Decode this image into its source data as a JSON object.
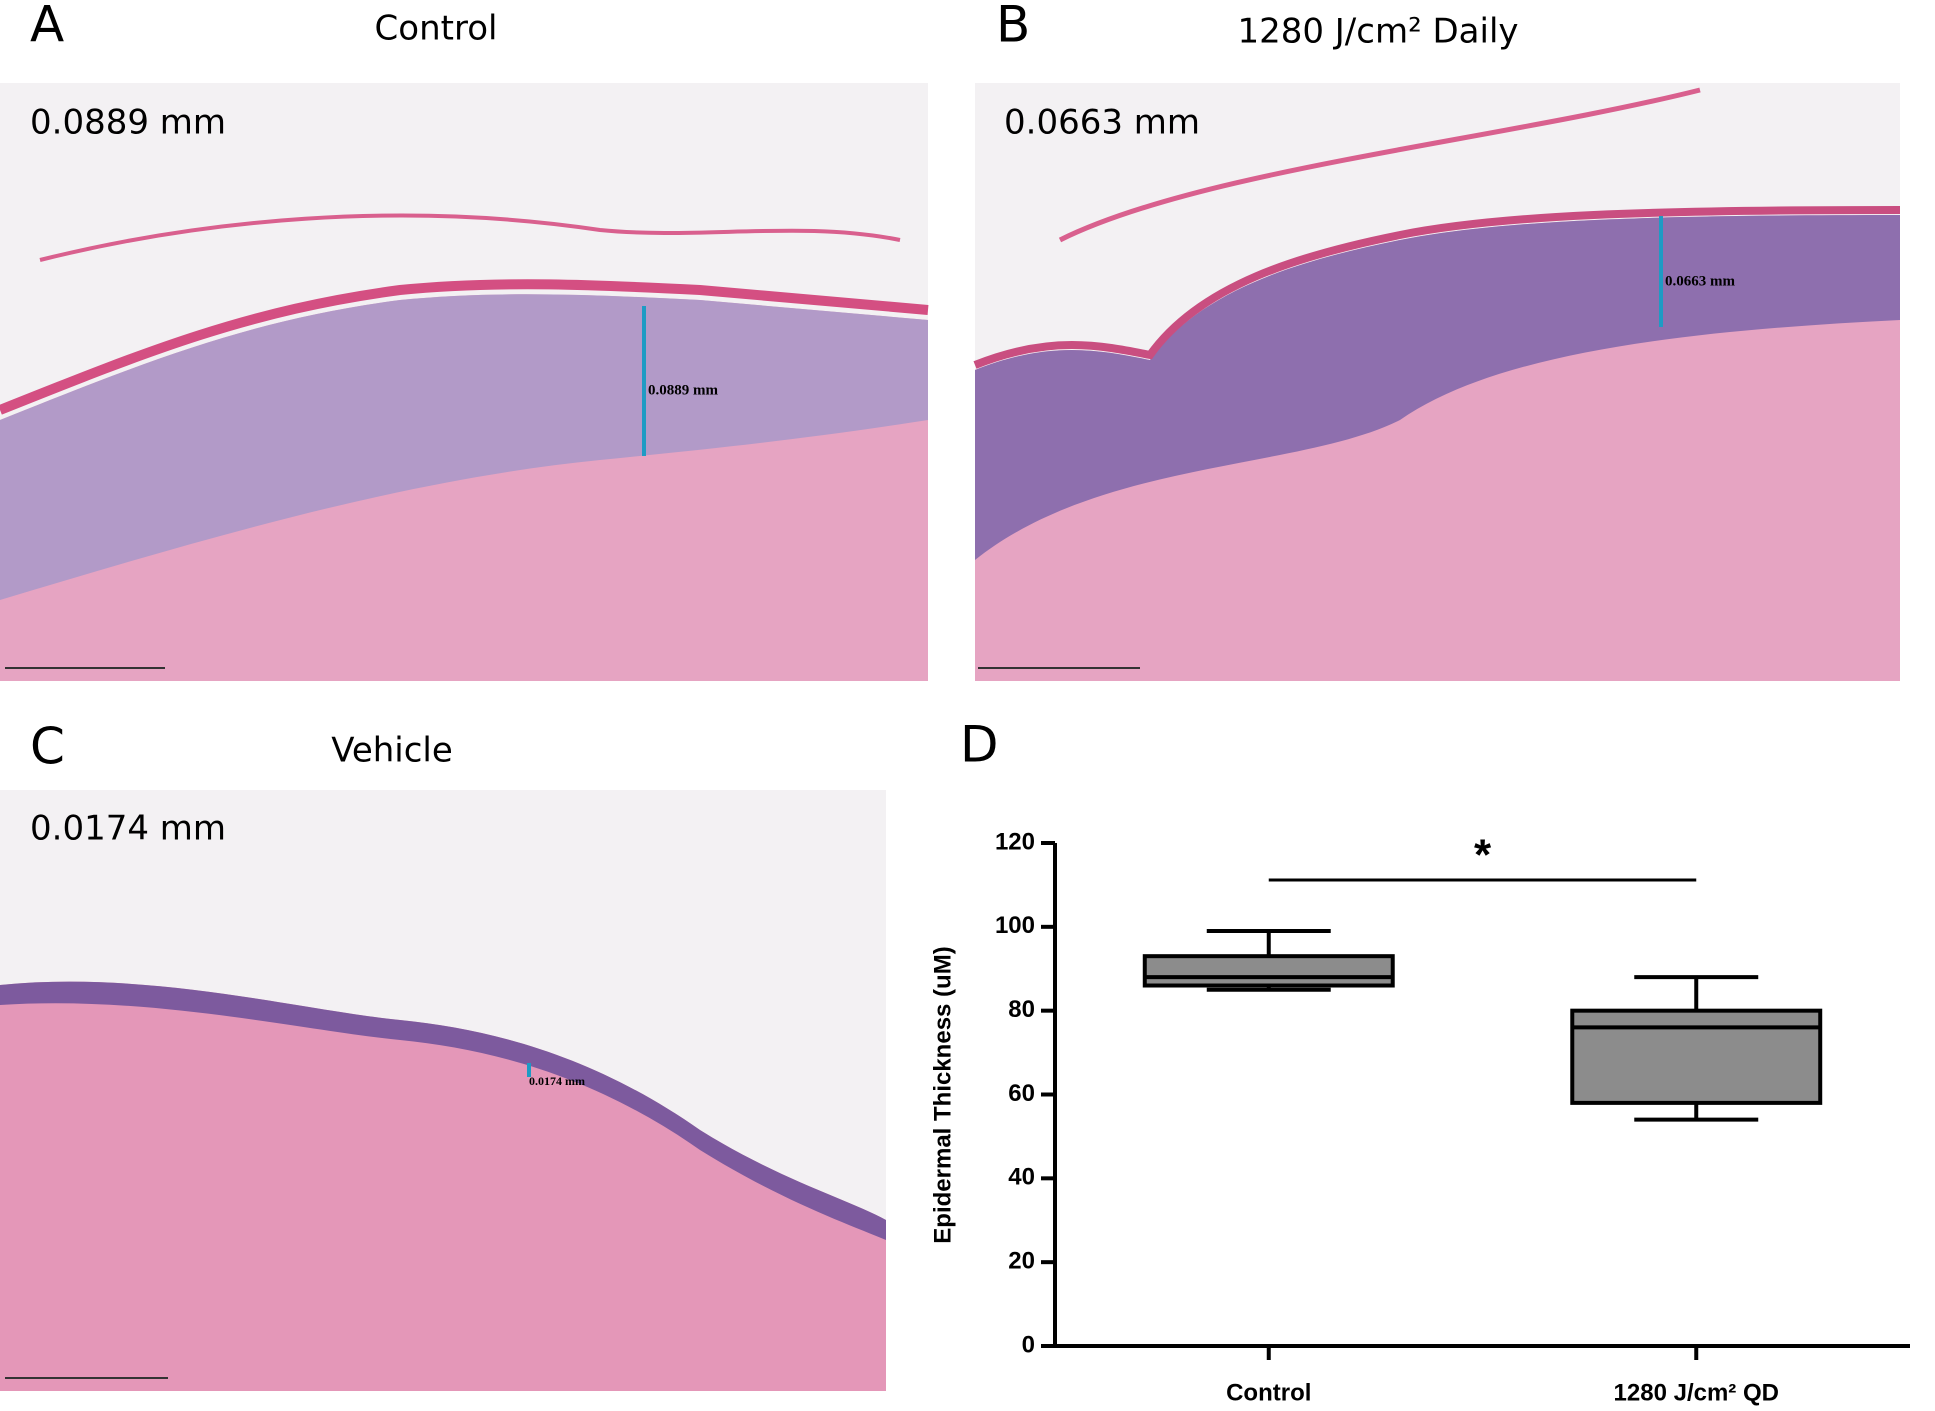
{
  "panels": [
    {
      "letter": "A",
      "title": "Control",
      "measurement": "0.0889 mm"
    },
    {
      "letter": "B",
      "title": "1280 J/cm² Daily",
      "measurement": "0.0663 mm"
    },
    {
      "letter": "C",
      "title": "Vehicle",
      "measurement": "0.0174 mm"
    }
  ],
  "chart_data": {
    "type": "box",
    "letter": "D",
    "y_label": "Epidermal Thickness (uM)",
    "categories": [
      "Control",
      "1280 J/cm² QD"
    ],
    "boxes": [
      {
        "min": 85,
        "q1": 86,
        "median": 88,
        "q3": 93,
        "max": 99
      },
      {
        "min": 54,
        "q1": 58,
        "median": 76,
        "q3": 80,
        "max": 88
      }
    ],
    "color": "#8c8c8c",
    "ylim": [
      0,
      120
    ],
    "yticks": [
      0,
      20,
      40,
      60,
      80,
      100,
      120
    ],
    "significance": "*"
  }
}
